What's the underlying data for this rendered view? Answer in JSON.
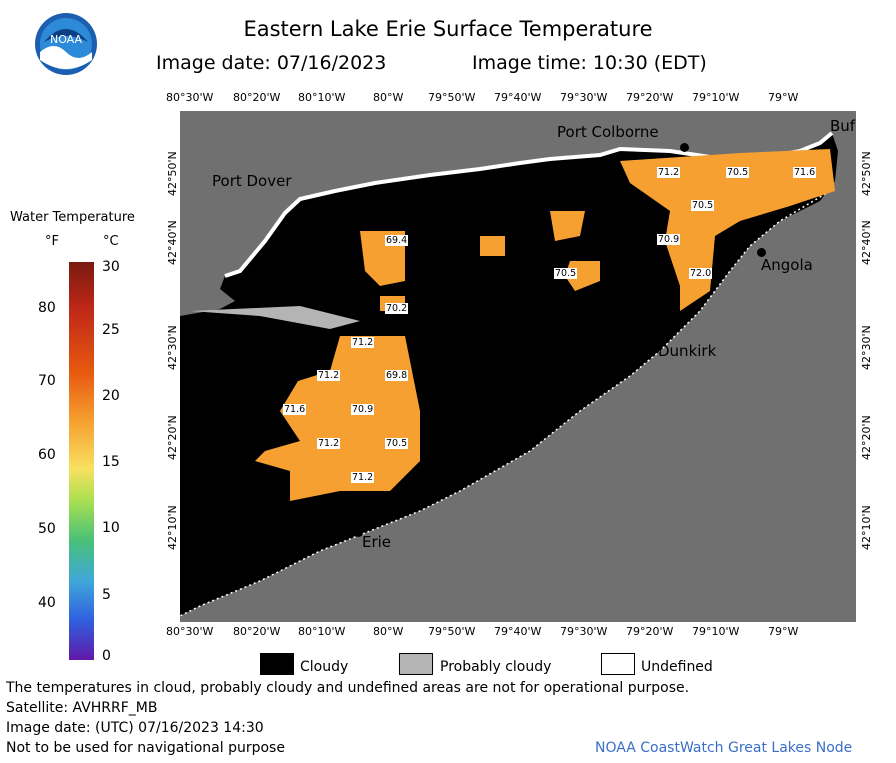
{
  "title": "Eastern Lake Erie Surface Temperature",
  "image_date_label": "Image date: 07/16/2023",
  "image_time_label": "Image time: 10:30 (EDT)",
  "logo_text": "NOAA",
  "lon_ticks": [
    "80°30'W",
    "80°20'W",
    "80°10'W",
    "80°W",
    "79°50'W",
    "79°40'W",
    "79°30'W",
    "79°20'W",
    "79°10'W",
    "79°W"
  ],
  "lat_ticks": [
    "42°50'N",
    "42°40'N",
    "42°30'N",
    "42°20'N",
    "42°10'N"
  ],
  "cities": {
    "port_colborne": "Port Colborne",
    "port_dover": "Port Dover",
    "angola": "Angola",
    "dunkirk": "Dunkirk",
    "erie": "Erie",
    "buffalo": "Buf"
  },
  "temperature_labels": [
    "71.2",
    "70.5",
    "71.6",
    "70.5",
    "70.9",
    "72.0",
    "69.4",
    "70.5",
    "70.2",
    "71.2",
    "71.2",
    "69.8",
    "71.6",
    "70.9",
    "71.2",
    "70.5",
    "71.2"
  ],
  "color_scale": {
    "title": "Water Temperature",
    "unit_f": "°F",
    "unit_c": "°C",
    "f_ticks": [
      "80",
      "70",
      "60",
      "50",
      "40"
    ],
    "c_ticks": [
      "30",
      "25",
      "20",
      "15",
      "10",
      "5",
      "0"
    ]
  },
  "legend": {
    "cloudy": "Cloudy",
    "probably_cloudy": "Probably cloudy",
    "undefined": "Undefined"
  },
  "footer": {
    "disclaimer": "The temperatures in cloud, probably cloudy and undefined areas are not for operational purpose.",
    "satellite": "Satellite: AVHRRF_MB",
    "utc_date": "Image date: (UTC) 07/16/2023  14:30",
    "nav": "Not to be used for navigational purpose",
    "credit": "NOAA CoastWatch Great Lakes Node"
  },
  "colors": {
    "land": "#707070",
    "cloud": "#000000",
    "probably_cloudy": "#b4b4b4",
    "water_warm": "#f5a030",
    "credit_blue": "#3a6ec8"
  }
}
